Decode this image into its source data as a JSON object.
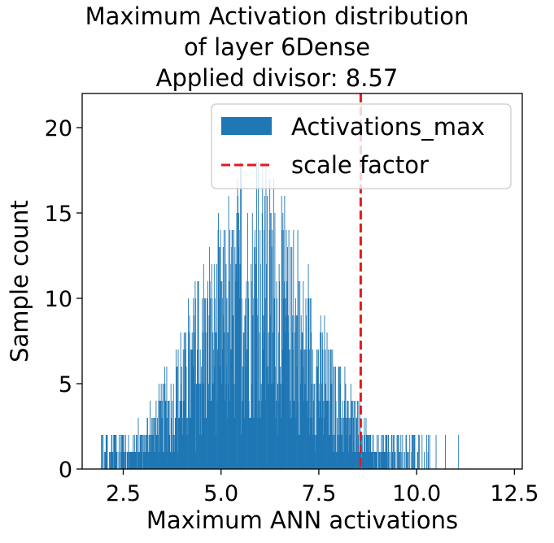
{
  "chart_data": {
    "type": "bar",
    "title_lines": [
      "Maximum Activation distribution",
      "of layer 6Dense",
      "Applied divisor: 8.57"
    ],
    "xlabel": "Maximum ANN activations",
    "ylabel": "Sample count",
    "xlim": [
      1.45,
      12.7
    ],
    "ylim": [
      0,
      22
    ],
    "xticks": [
      2.5,
      5.0,
      7.5,
      10.0,
      12.5
    ],
    "xtick_labels": [
      "2.5",
      "5.0",
      "7.5",
      "10.0",
      "12.5"
    ],
    "yticks": [
      0,
      5,
      10,
      15,
      20
    ],
    "ytick_labels": [
      "0",
      "5",
      "10",
      "15",
      "20"
    ],
    "legend_position": "top-right",
    "series": [
      {
        "name": "Activations_max",
        "color": "#1f77b4",
        "distribution": {
          "mean": 5.85,
          "std": 1.5,
          "min": 1.9,
          "max": 12.2,
          "peak_count": 21
        }
      },
      {
        "name": "scale factor",
        "color": "#e41a1c",
        "style": "dashed",
        "x": 8.57
      }
    ]
  }
}
